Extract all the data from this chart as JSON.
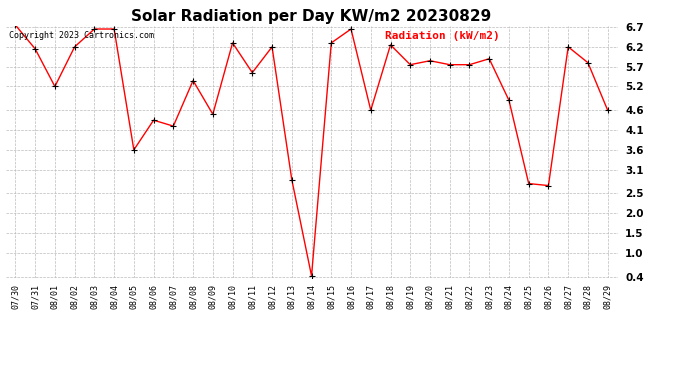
{
  "title": "Solar Radiation per Day KW/m2 20230829",
  "copyright": "Copyright 2023 Cartronics.com",
  "legend_label": "Radiation (kW/m2)",
  "dates": [
    "07/30",
    "07/31",
    "08/01",
    "08/02",
    "08/03",
    "08/04",
    "08/05",
    "08/06",
    "08/07",
    "08/08",
    "08/09",
    "08/10",
    "08/11",
    "08/12",
    "08/13",
    "08/14",
    "08/15",
    "08/16",
    "08/17",
    "08/18",
    "08/19",
    "08/20",
    "08/21",
    "08/22",
    "08/23",
    "08/24",
    "08/25",
    "08/26",
    "08/27",
    "08/28",
    "08/29"
  ],
  "values": [
    6.75,
    6.15,
    5.2,
    6.2,
    6.65,
    6.65,
    3.6,
    4.35,
    4.2,
    5.35,
    4.5,
    6.3,
    5.55,
    6.2,
    2.85,
    0.42,
    6.3,
    6.65,
    4.6,
    6.25,
    5.75,
    5.85,
    5.75,
    5.75,
    5.9,
    4.85,
    2.75,
    2.7,
    6.2,
    5.8,
    4.6
  ],
  "line_color": "#ff0000",
  "marker_color": "#000000",
  "grid_color": "#bbbbbb",
  "background_color": "#ffffff",
  "title_fontsize": 11,
  "ylim_min": 0.4,
  "ylim_max": 6.7,
  "yticks": [
    0.4,
    1.0,
    1.5,
    2.0,
    2.5,
    3.1,
    3.6,
    4.1,
    4.6,
    5.2,
    5.7,
    6.2,
    6.7
  ]
}
